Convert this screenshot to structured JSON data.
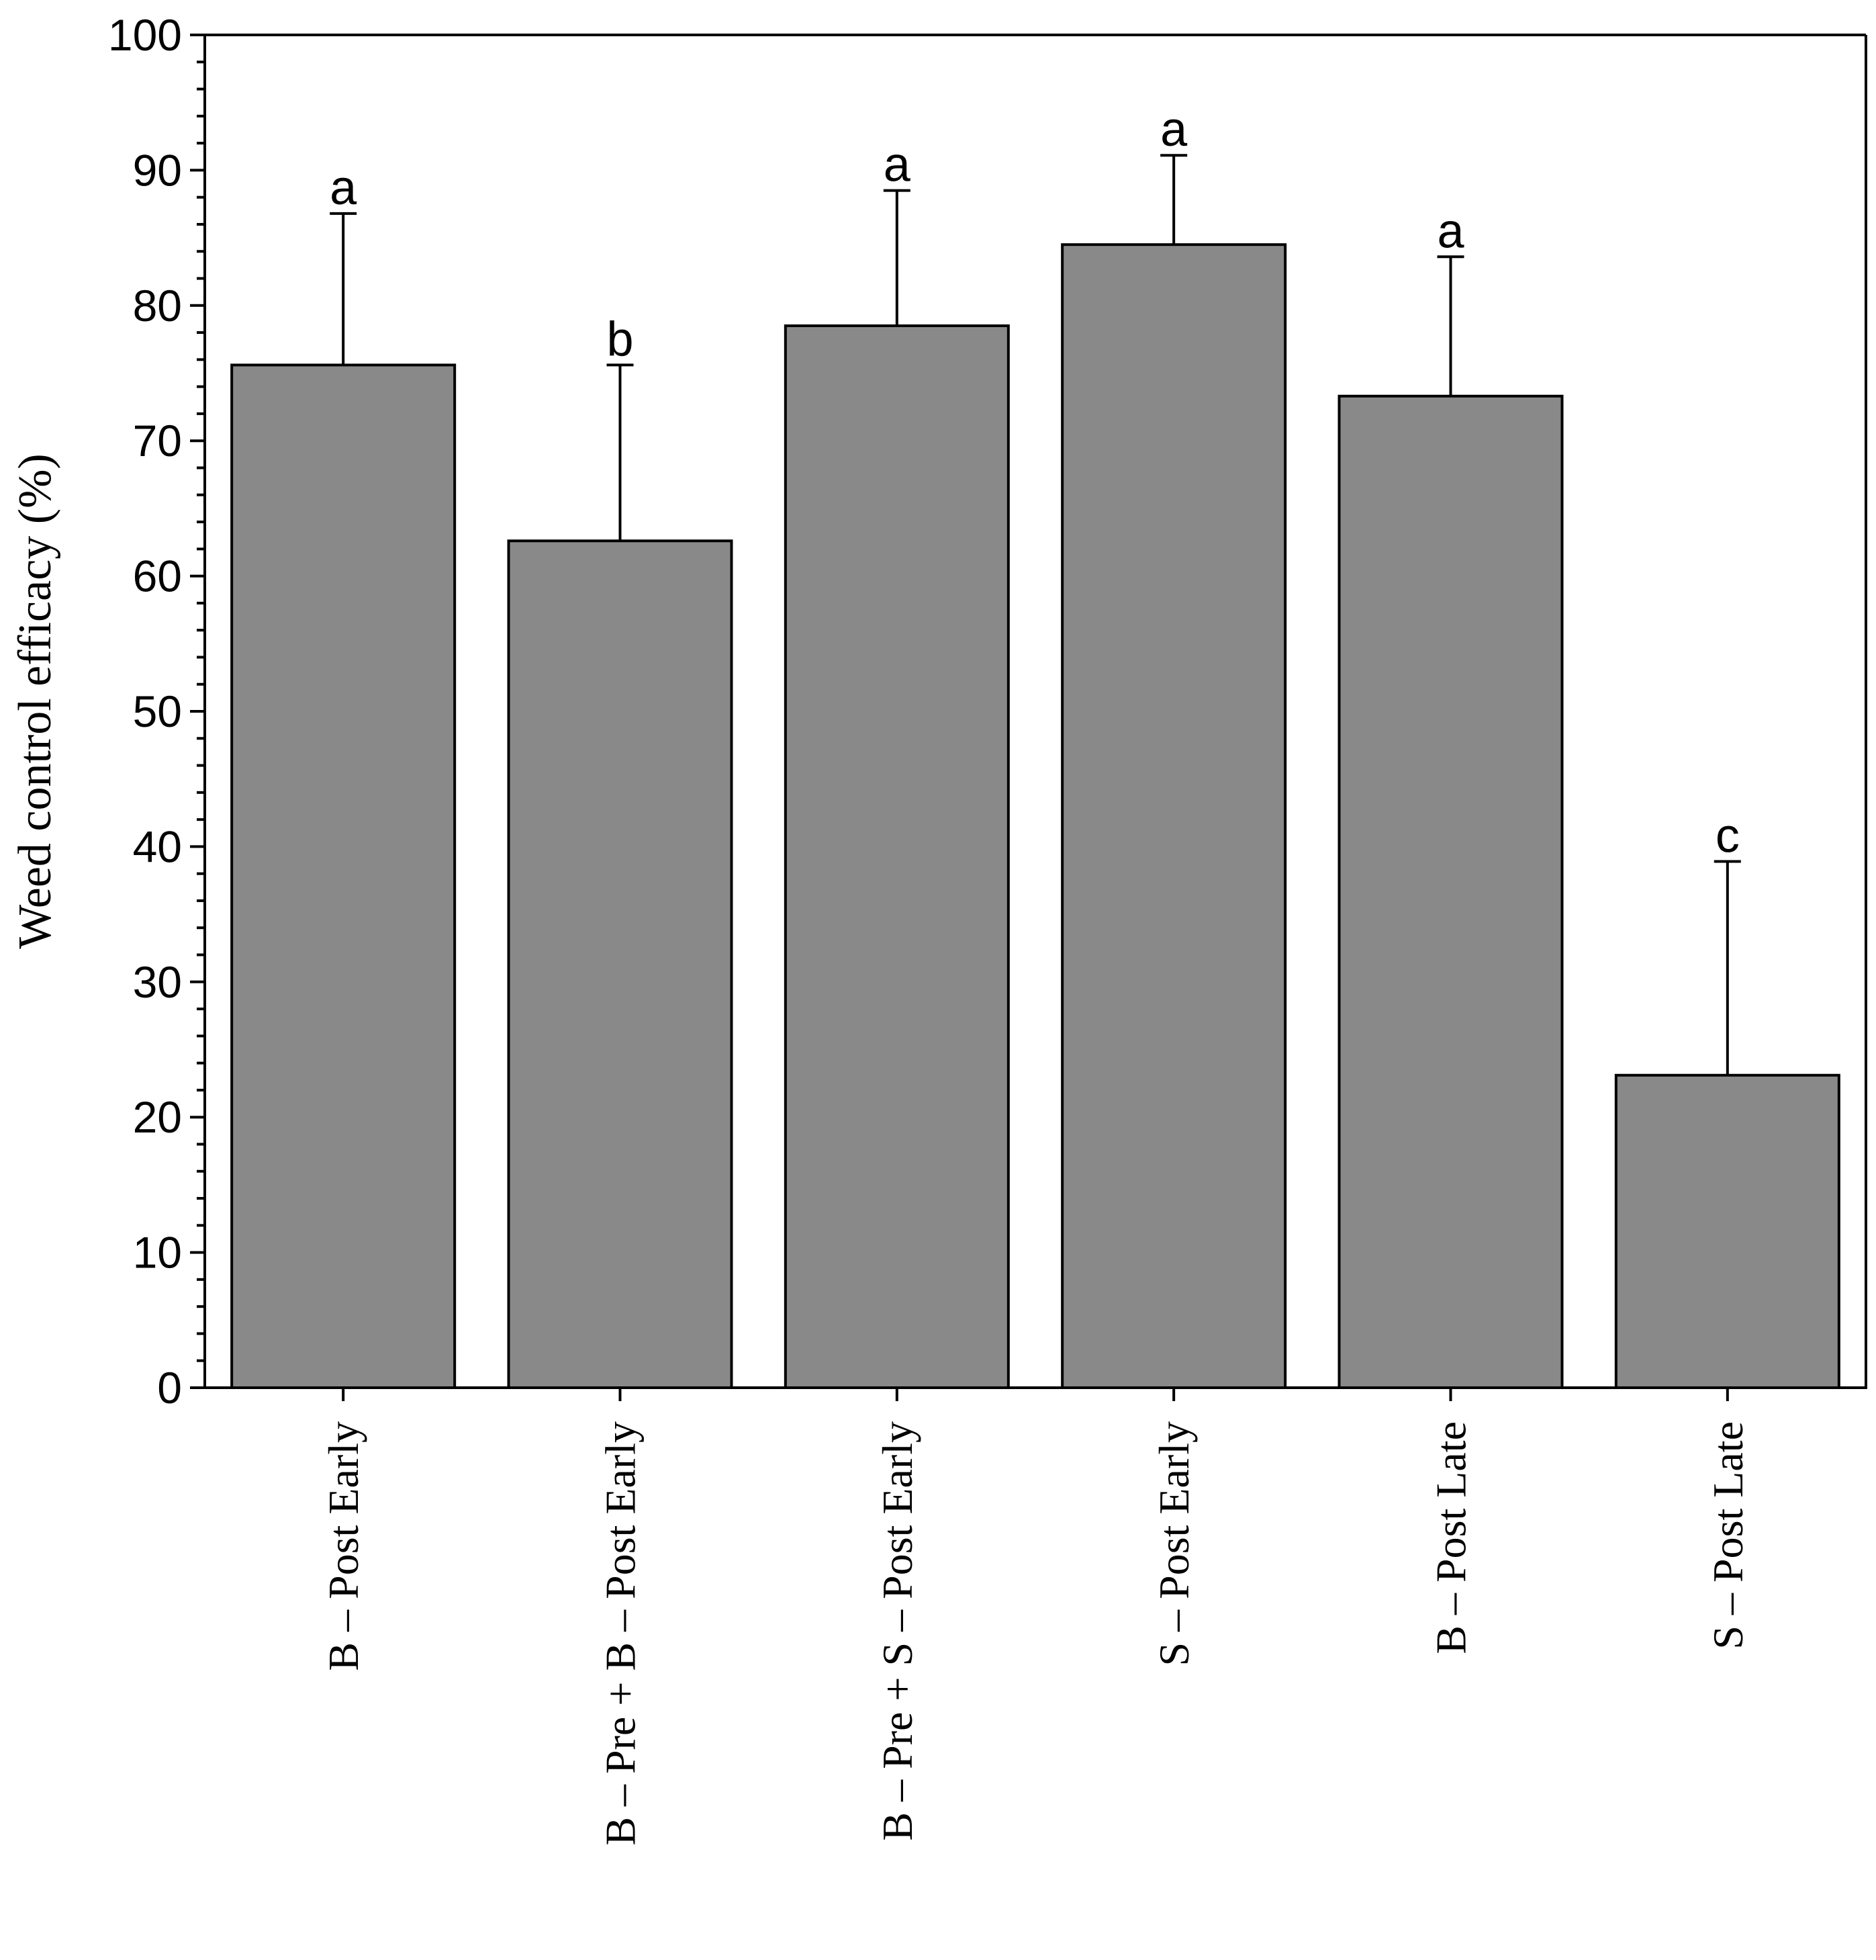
{
  "chart_data": {
    "type": "bar",
    "categories": [
      "B –  Post Early",
      "B –  Pre + B – Post Early",
      "B – Pre + S – Post Early",
      "S – Post Early",
      "B – Post Late",
      "S – Post Late"
    ],
    "values": [
      75.6,
      62.6,
      78.5,
      84.5,
      73.3,
      23.1
    ],
    "error_upper": [
      11.2,
      13.0,
      10.0,
      6.6,
      10.3,
      15.8
    ],
    "significance_letters": [
      "a",
      "b",
      "a",
      "a",
      "a",
      "c"
    ],
    "ylabel": "Weed control efficacy (%)",
    "xlabel": "",
    "ylim": [
      0,
      100
    ],
    "yticks": [
      0,
      10,
      20,
      30,
      40,
      50,
      60,
      70,
      80,
      90,
      100
    ],
    "ytick_labels": [
      "0",
      "10",
      "20",
      "30",
      "40",
      "50",
      "60",
      "70",
      "80",
      "90",
      "100"
    ],
    "bar_color": "#898989",
    "grid": false,
    "legend": "none"
  }
}
